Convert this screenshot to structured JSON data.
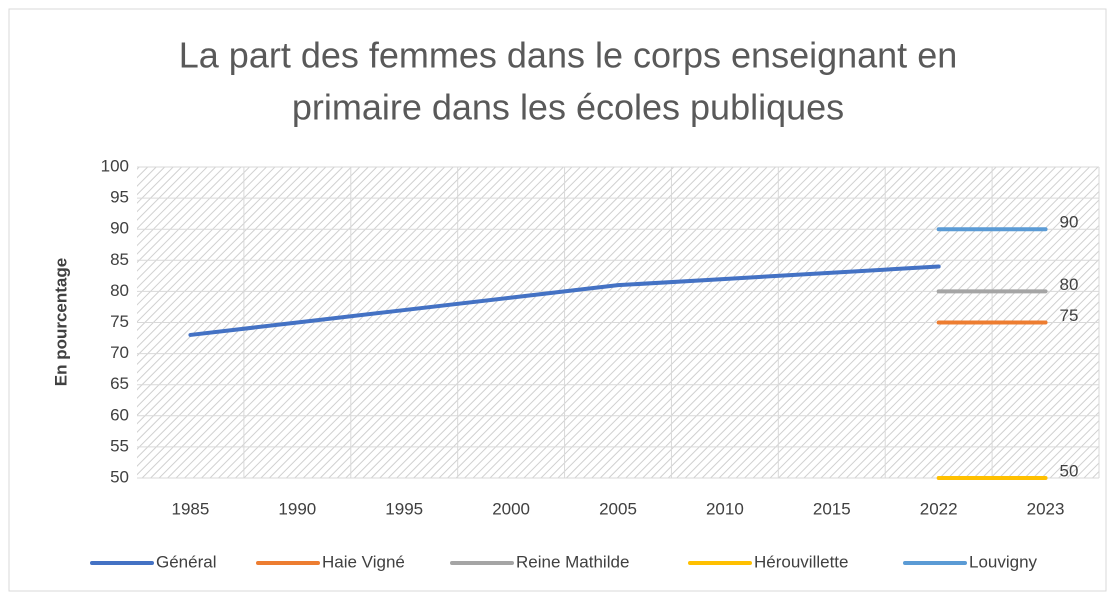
{
  "chart_data": {
    "type": "line",
    "title": [
      "La part des femmes dans le corps enseignant en",
      "primaire dans les écoles publiques"
    ],
    "y_label": "En pourcentage",
    "categories": [
      "1985",
      "1990",
      "1995",
      "2000",
      "2005",
      "2010",
      "2015",
      "2022",
      "2023"
    ],
    "series": [
      {
        "name": "Général",
        "color": "#4472c4",
        "values": [
          73,
          75,
          77,
          79,
          81,
          82,
          83,
          84,
          null
        ]
      },
      {
        "name": "Haie Vigné",
        "color": "#ed7d31",
        "values": [
          null,
          null,
          null,
          null,
          null,
          null,
          null,
          75,
          75
        ],
        "value_labels": [
          null,
          null,
          null,
          null,
          null,
          null,
          null,
          null,
          "75"
        ]
      },
      {
        "name": "Reine Mathilde",
        "color": "#a5a5a5",
        "values": [
          null,
          null,
          null,
          null,
          null,
          null,
          null,
          80,
          80
        ],
        "value_labels": [
          null,
          null,
          null,
          null,
          null,
          null,
          null,
          null,
          "80"
        ]
      },
      {
        "name": "Hérouvillette",
        "color": "#ffc000",
        "values": [
          null,
          null,
          null,
          null,
          null,
          null,
          null,
          50,
          50
        ],
        "value_labels": [
          null,
          null,
          null,
          null,
          null,
          null,
          null,
          null,
          "50"
        ]
      },
      {
        "name": "Louvigny",
        "color": "#5b9bd5",
        "values": [
          null,
          null,
          null,
          null,
          null,
          null,
          null,
          90,
          90
        ],
        "value_labels": [
          null,
          null,
          null,
          null,
          null,
          null,
          null,
          null,
          "90"
        ]
      }
    ],
    "ylim": [
      50,
      100
    ],
    "yticks": [
      50,
      55,
      60,
      65,
      70,
      75,
      80,
      85,
      90,
      95,
      100
    ],
    "grid": true,
    "legend": "bottom"
  }
}
